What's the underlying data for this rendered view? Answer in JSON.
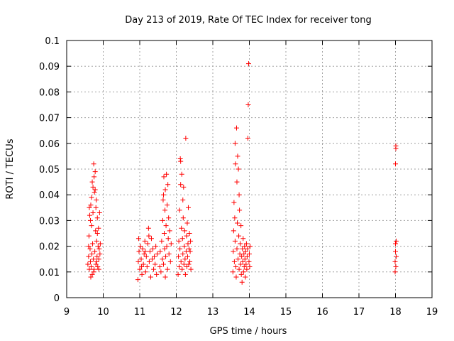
{
  "chart_data": {
    "type": "scatter",
    "title": "Day 213 of 2019, Rate Of TEC Index for receiver tong",
    "xlabel": "GPS time / hours",
    "ylabel": "ROTI / TECUs",
    "xlim": [
      9,
      19
    ],
    "ylim": [
      0,
      0.1
    ],
    "grid": true,
    "marker": "plus",
    "color": "#ff0000",
    "xticks": [
      "9",
      "10",
      "11",
      "12",
      "13",
      "14",
      "15",
      "16",
      "17",
      "18",
      "19"
    ],
    "yticks": [
      "0",
      "0.01",
      "0.02",
      "0.03",
      "0.04",
      "0.05",
      "0.06",
      "0.07",
      "0.08",
      "0.09",
      "0.1"
    ],
    "series": [
      {
        "name": "ROTI",
        "points": [
          [
            9.58,
            0.013
          ],
          [
            9.6,
            0.016
          ],
          [
            9.61,
            0.024
          ],
          [
            9.62,
            0.011
          ],
          [
            9.63,
            0.032
          ],
          [
            9.64,
            0.019
          ],
          [
            9.65,
            0.014
          ],
          [
            9.66,
            0.036
          ],
          [
            9.67,
            0.012
          ],
          [
            9.68,
            0.028
          ],
          [
            9.69,
            0.017
          ],
          [
            9.7,
            0.009
          ],
          [
            9.7,
            0.045
          ],
          [
            9.71,
            0.021
          ],
          [
            9.72,
            0.033
          ],
          [
            9.73,
            0.015
          ],
          [
            9.74,
            0.052
          ],
          [
            9.75,
            0.011
          ],
          [
            9.76,
            0.041
          ],
          [
            9.77,
            0.018
          ],
          [
            9.78,
            0.049
          ],
          [
            9.79,
            0.026
          ],
          [
            9.8,
            0.013
          ],
          [
            9.81,
            0.038
          ],
          [
            9.82,
            0.022
          ],
          [
            9.83,
            0.016
          ],
          [
            9.84,
            0.031
          ],
          [
            9.85,
            0.012
          ],
          [
            9.86,
            0.02
          ],
          [
            9.87,
            0.027
          ],
          [
            9.88,
            0.015
          ],
          [
            9.89,
            0.019
          ],
          [
            9.9,
            0.033
          ],
          [
            9.91,
            0.017
          ],
          [
            9.92,
            0.021
          ],
          [
            9.62,
            0.035
          ],
          [
            9.65,
            0.03
          ],
          [
            9.68,
            0.039
          ],
          [
            9.72,
            0.043
          ],
          [
            9.75,
            0.047
          ],
          [
            9.78,
            0.042
          ],
          [
            9.8,
            0.035
          ],
          [
            9.84,
            0.025
          ],
          [
            9.66,
            0.008
          ],
          [
            9.74,
            0.01
          ],
          [
            9.82,
            0.014
          ],
          [
            9.6,
            0.02
          ],
          [
            9.88,
            0.011
          ],
          [
            10.95,
            0.007
          ],
          [
            10.96,
            0.014
          ],
          [
            10.97,
            0.023
          ],
          [
            10.98,
            0.018
          ],
          [
            11.0,
            0.011
          ],
          [
            11.02,
            0.02
          ],
          [
            11.04,
            0.015
          ],
          [
            11.06,
            0.009
          ],
          [
            11.08,
            0.019
          ],
          [
            11.1,
            0.013
          ],
          [
            11.12,
            0.017
          ],
          [
            11.14,
            0.022
          ],
          [
            11.16,
            0.01
          ],
          [
            11.18,
            0.016
          ],
          [
            11.2,
            0.012
          ],
          [
            11.22,
            0.021
          ],
          [
            11.24,
            0.027
          ],
          [
            11.26,
            0.014
          ],
          [
            11.28,
            0.018
          ],
          [
            11.3,
            0.008
          ],
          [
            11.32,
            0.023
          ],
          [
            11.34,
            0.015
          ],
          [
            11.36,
            0.019
          ],
          [
            11.38,
            0.011
          ],
          [
            11.4,
            0.016
          ],
          [
            11.42,
            0.013
          ],
          [
            11.44,
            0.02
          ],
          [
            11.46,
            0.009
          ],
          [
            11.48,
            0.017
          ],
          [
            11.25,
            0.024
          ],
          [
            11.05,
            0.012
          ],
          [
            11.15,
            0.018
          ],
          [
            11.55,
            0.012
          ],
          [
            11.56,
            0.018
          ],
          [
            11.58,
            0.01
          ],
          [
            11.6,
            0.022
          ],
          [
            11.62,
            0.015
          ],
          [
            11.63,
            0.03
          ],
          [
            11.64,
            0.038
          ],
          [
            11.65,
            0.013
          ],
          [
            11.66,
            0.047
          ],
          [
            11.67,
            0.025
          ],
          [
            11.68,
            0.019
          ],
          [
            11.69,
            0.034
          ],
          [
            11.7,
            0.042
          ],
          [
            11.71,
            0.016
          ],
          [
            11.72,
            0.028
          ],
          [
            11.73,
            0.048
          ],
          [
            11.74,
            0.02
          ],
          [
            11.75,
            0.036
          ],
          [
            11.76,
            0.011
          ],
          [
            11.77,
            0.044
          ],
          [
            11.78,
            0.023
          ],
          [
            11.79,
            0.031
          ],
          [
            11.8,
            0.017
          ],
          [
            11.82,
            0.026
          ],
          [
            11.84,
            0.014
          ],
          [
            11.86,
            0.021
          ],
          [
            11.7,
            0.008
          ],
          [
            11.65,
            0.04
          ],
          [
            12.05,
            0.009
          ],
          [
            12.06,
            0.016
          ],
          [
            12.07,
            0.022
          ],
          [
            12.08,
            0.012
          ],
          [
            12.09,
            0.034
          ],
          [
            12.1,
            0.019
          ],
          [
            12.11,
            0.054
          ],
          [
            12.12,
            0.044
          ],
          [
            12.13,
            0.014
          ],
          [
            12.14,
            0.027
          ],
          [
            12.15,
            0.048
          ],
          [
            12.16,
            0.011
          ],
          [
            12.17,
            0.023
          ],
          [
            12.18,
            0.017
          ],
          [
            12.19,
            0.031
          ],
          [
            12.2,
            0.043
          ],
          [
            12.21,
            0.013
          ],
          [
            12.22,
            0.02
          ],
          [
            12.23,
            0.026
          ],
          [
            12.24,
            0.015
          ],
          [
            12.25,
            0.009
          ],
          [
            12.26,
            0.062
          ],
          [
            12.27,
            0.018
          ],
          [
            12.28,
            0.024
          ],
          [
            12.29,
            0.012
          ],
          [
            12.3,
            0.029
          ],
          [
            12.31,
            0.016
          ],
          [
            12.32,
            0.021
          ],
          [
            12.33,
            0.035
          ],
          [
            12.34,
            0.013
          ],
          [
            12.35,
            0.019
          ],
          [
            12.36,
            0.025
          ],
          [
            12.37,
            0.014
          ],
          [
            12.38,
            0.018
          ],
          [
            12.39,
            0.022
          ],
          [
            12.4,
            0.011
          ],
          [
            12.12,
            0.053
          ],
          [
            12.18,
            0.038
          ],
          [
            13.55,
            0.01
          ],
          [
            13.56,
            0.018
          ],
          [
            13.57,
            0.026
          ],
          [
            13.58,
            0.037
          ],
          [
            13.59,
            0.014
          ],
          [
            13.6,
            0.031
          ],
          [
            13.61,
            0.022
          ],
          [
            13.62,
            0.052
          ],
          [
            13.63,
            0.012
          ],
          [
            13.64,
            0.008
          ],
          [
            13.65,
            0.066
          ],
          [
            13.66,
            0.019
          ],
          [
            13.67,
            0.029
          ],
          [
            13.68,
            0.055
          ],
          [
            13.69,
            0.015
          ],
          [
            13.7,
            0.05
          ],
          [
            13.71,
            0.024
          ],
          [
            13.72,
            0.011
          ],
          [
            13.73,
            0.034
          ],
          [
            13.74,
            0.017
          ],
          [
            13.75,
            0.021
          ],
          [
            13.76,
            0.013
          ],
          [
            13.77,
            0.028
          ],
          [
            13.78,
            0.009
          ],
          [
            13.79,
            0.016
          ],
          [
            13.8,
            0.006
          ],
          [
            13.81,
            0.019
          ],
          [
            13.82,
            0.014
          ],
          [
            13.83,
            0.023
          ],
          [
            13.84,
            0.01
          ],
          [
            13.85,
            0.017
          ],
          [
            13.86,
            0.012
          ],
          [
            13.87,
            0.02
          ],
          [
            13.88,
            0.015
          ],
          [
            13.89,
            0.008
          ],
          [
            13.9,
            0.018
          ],
          [
            13.91,
            0.013
          ],
          [
            13.92,
            0.021
          ],
          [
            13.93,
            0.011
          ],
          [
            13.94,
            0.016
          ],
          [
            13.95,
            0.019
          ],
          [
            13.96,
            0.062
          ],
          [
            13.97,
            0.075
          ],
          [
            13.98,
            0.091
          ],
          [
            13.99,
            0.014
          ],
          [
            14.0,
            0.017
          ],
          [
            14.01,
            0.012
          ],
          [
            14.02,
            0.02
          ],
          [
            13.61,
            0.06
          ],
          [
            13.66,
            0.045
          ],
          [
            13.72,
            0.04
          ],
          [
            17.99,
            0.01
          ],
          [
            17.99,
            0.014
          ],
          [
            18.0,
            0.018
          ],
          [
            18.0,
            0.021
          ],
          [
            18.0,
            0.052
          ],
          [
            18.01,
            0.058
          ],
          [
            18.01,
            0.059
          ],
          [
            18.01,
            0.012
          ],
          [
            18.02,
            0.022
          ],
          [
            18.02,
            0.016
          ]
        ]
      }
    ]
  }
}
